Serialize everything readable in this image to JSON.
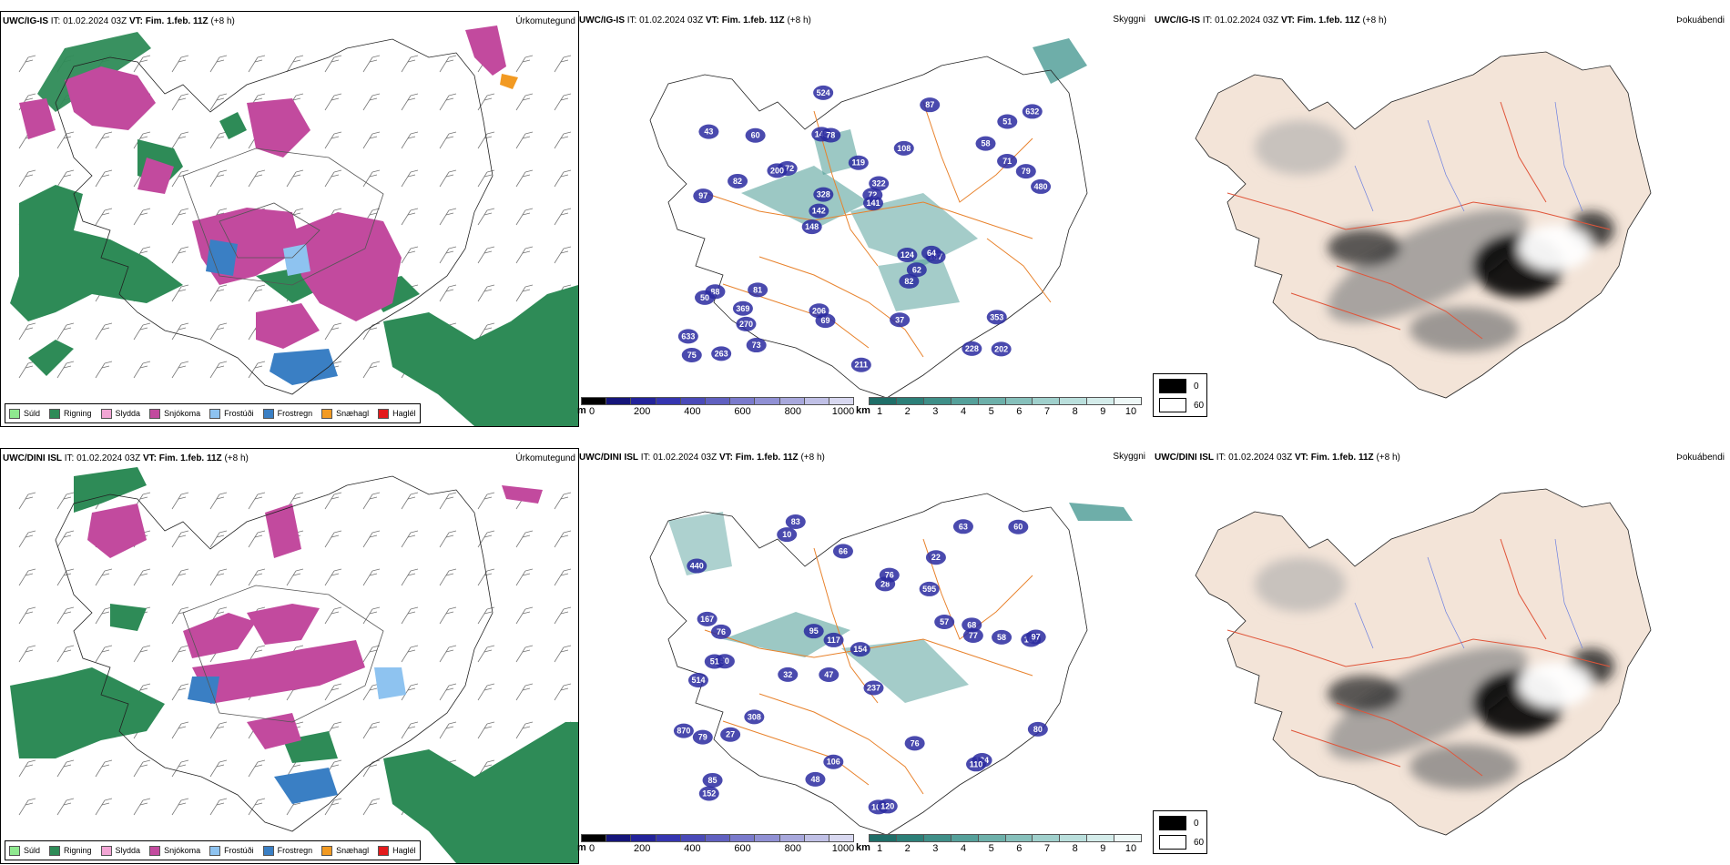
{
  "rows": [
    {
      "precip": {
        "model": "UWC/IG-IS",
        "it_label": "IT:",
        "it_value": "01.02.2024 03Z",
        "vt_label": "VT:",
        "vt_value": "Fim. 1.feb. 11Z",
        "lead": "(+8 h)",
        "right_title": "Úrkomutegund"
      },
      "vis": {
        "model": "UWC/IG-IS",
        "it_label": "IT:",
        "it_value": "01.02.2024 03Z",
        "vt_label": "VT:",
        "vt_value": "Fim. 1.feb. 11Z",
        "lead": "(+8 h)",
        "right_title": "Skyggni",
        "labels": [
          "202",
          "97",
          "51",
          "148",
          "108",
          "263",
          "145",
          "119",
          "88",
          "472",
          "633",
          "270",
          "78",
          "322",
          "187",
          "43",
          "524",
          "480",
          "124",
          "71",
          "142",
          "206",
          "328",
          "60",
          "87",
          "81",
          "228",
          "353",
          "64",
          "211",
          "200",
          "82",
          "82",
          "73",
          "79",
          "72",
          "75",
          "69",
          "141",
          "50",
          "58",
          "632",
          "62",
          "37",
          "369"
        ]
      },
      "fog": {
        "model": "UWC/IG-IS",
        "it_label": "IT:",
        "it_value": "01.02.2024 03Z",
        "vt_label": "VT:",
        "vt_value": "Fim. 1.feb. 11Z",
        "lead": "(+8 h)",
        "right_title": "Þokuábendi"
      }
    },
    {
      "precip": {
        "model": "UWC/DINI ISL",
        "it_label": "IT:",
        "it_value": "01.02.2024 03Z",
        "vt_label": "VT:",
        "vt_value": "Fim. 1.feb. 11Z",
        "lead": "(+8 h)",
        "right_title": "Úrkomutegund"
      },
      "vis": {
        "model": "UWC/DINI ISL",
        "it_label": "IT:",
        "it_value": "01.02.2024 03Z",
        "vt_label": "VT:",
        "vt_value": "Fim. 1.feb. 11Z",
        "lead": "(+8 h)",
        "right_title": "Skyggni",
        "labels": [
          "83",
          "22",
          "106",
          "47",
          "237",
          "50",
          "440",
          "595",
          "514",
          "28",
          "154",
          "152",
          "10",
          "32",
          "108",
          "120",
          "106",
          "63",
          "57",
          "308",
          "76",
          "51",
          "97",
          "58",
          "870",
          "167",
          "117",
          "77",
          "124",
          "79",
          "110",
          "76",
          "27",
          "95",
          "76",
          "80",
          "68",
          "48",
          "60",
          "66",
          "85"
        ]
      },
      "fog": {
        "model": "UWC/DINI ISL",
        "it_label": "IT:",
        "it_value": "01.02.2024 03Z",
        "vt_label": "VT:",
        "vt_value": "Fim. 1.feb. 11Z",
        "lead": "(+8 h)",
        "right_title": "Þokuábendi"
      }
    }
  ],
  "precip_legend": [
    {
      "label": "Súld",
      "color": "#8fe88f"
    },
    {
      "label": "Rigning",
      "color": "#2e8b57"
    },
    {
      "label": "Slydda",
      "color": "#f2a5d4"
    },
    {
      "label": "Snjókoma",
      "color": "#c24a9e"
    },
    {
      "label": "Frostúði",
      "color": "#8ec3f0"
    },
    {
      "label": "Frostregn",
      "color": "#3a7fc4"
    },
    {
      "label": "Snæhagl",
      "color": "#f29a22"
    },
    {
      "label": "Haglél",
      "color": "#e31a1c"
    }
  ],
  "ceiling_bar": {
    "unit": "m",
    "ticks": [
      "0",
      "200",
      "400",
      "600",
      "800",
      "1000"
    ],
    "colors": [
      "#000000",
      "#15157a",
      "#23239a",
      "#3535b0",
      "#4a4ab8",
      "#6060c0",
      "#7a7acc",
      "#9090d4",
      "#a8a8dc",
      "#c0c0e6",
      "#d8d8f0"
    ]
  },
  "visibility_bar": {
    "unit": "km",
    "ticks": [
      "1",
      "2",
      "3",
      "4",
      "5",
      "6",
      "7",
      "8",
      "9",
      "10"
    ],
    "colors": [
      "#1f6e68",
      "#2c7f78",
      "#3f8f88",
      "#55a09a",
      "#6db0aa",
      "#86c0bb",
      "#a0d0cc",
      "#badfdc",
      "#d4ecea",
      "#eef8f7"
    ]
  },
  "fog_legend": {
    "high": "0",
    "low": "60"
  },
  "colors": {
    "snow": "#c24a9e",
    "rain": "#2e8b57",
    "freezing_rain": "#3a7fc4",
    "freezing_drizzle": "#8ec3f0",
    "ice_pellets": "#f29a22",
    "roads": "#e8822c",
    "land_fog": "#f3e4d8",
    "ceiling_blue": "#2a2aa0",
    "vis_teal": "#4a9a94"
  }
}
